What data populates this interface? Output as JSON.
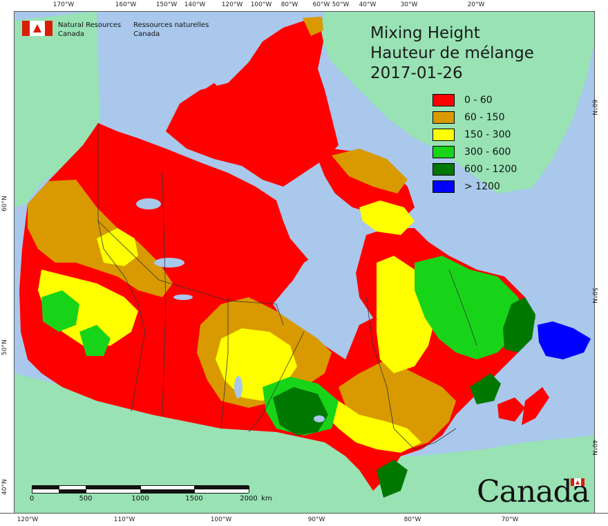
{
  "header": {
    "ministry_en_1": "Natural Resources",
    "ministry_en_2": "Canada",
    "ministry_fr_1": "Ressources naturelles",
    "ministry_fr_2": "Canada"
  },
  "title": {
    "line1": "Mixing Height",
    "line2": "Hauteur de mélange",
    "date": "2017-01-26"
  },
  "legend": [
    {
      "label": "0 - 60",
      "color": "#ff0000"
    },
    {
      "label": "60 - 150",
      "color": "#d89a00"
    },
    {
      "label": "150 - 300",
      "color": "#ffff00"
    },
    {
      "label": "300 - 600",
      "color": "#18d418"
    },
    {
      "label": "600 - 1200",
      "color": "#007800"
    },
    {
      "label": "> 1200",
      "color": "#0000ff"
    }
  ],
  "colors": {
    "ocean": "#a9c8ec",
    "land": "#98e2b4",
    "border": "#333333"
  },
  "top_ticks": [
    "170°W",
    "160°W",
    "150°W",
    "140°W",
    "120°W",
    "100°W",
    "80°W",
    "60°W",
    "50°W",
    "40°W",
    "30°W",
    "20°W"
  ],
  "bottom_ticks": [
    "120°W",
    "110°W",
    "100°W",
    "90°W",
    "80°W",
    "70°W"
  ],
  "left_ticks": [
    "60°N",
    "50°N",
    "40°N"
  ],
  "right_ticks": [
    "60°N",
    "50°N",
    "40°N"
  ],
  "scale": {
    "labels": [
      "0",
      "500",
      "1000",
      "1500",
      "2000"
    ],
    "unit": "km"
  },
  "wordmark": "Canada"
}
